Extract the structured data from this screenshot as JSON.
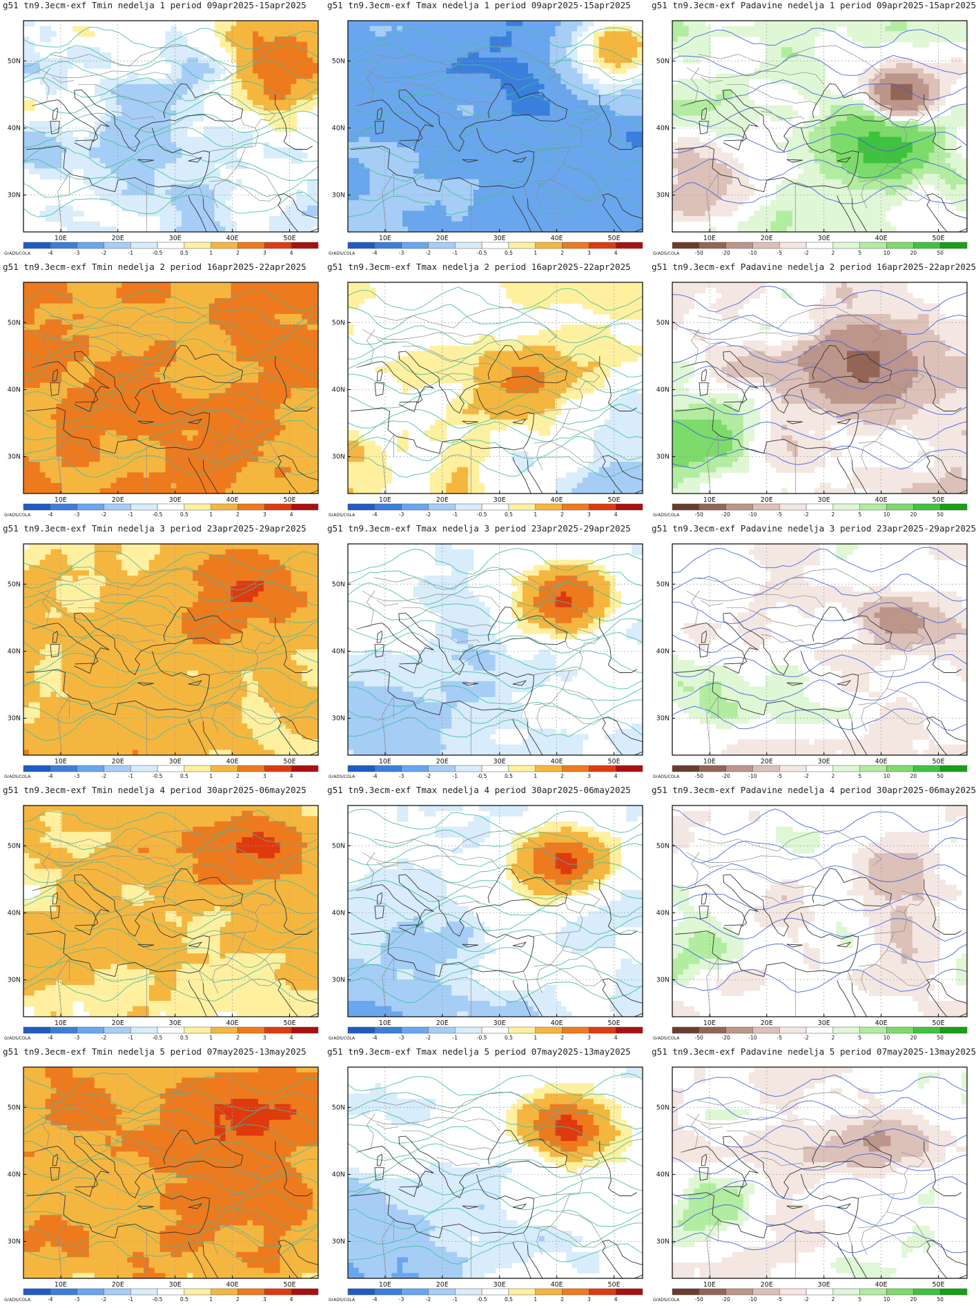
{
  "credit": "GrADS/COLA",
  "lon_ticks": [
    "10E",
    "20E",
    "30E",
    "40E",
    "50E"
  ],
  "lat_ticks": [
    "50N",
    "40N",
    "30N"
  ],
  "temp_scale": {
    "labels": [
      "-4",
      "-3",
      "-2",
      "-1",
      "-0.5",
      "0.5",
      "1",
      "2",
      "3",
      "4"
    ],
    "colors": [
      "#1f5bc4",
      "#3b7fdc",
      "#6aa6ee",
      "#a6cdf6",
      "#d8ecfb",
      "#ffffff",
      "#fff0a0",
      "#f5b640",
      "#ee7a1e",
      "#df3a0f",
      "#aa1010"
    ]
  },
  "precip_scale": {
    "labels": [
      "-50",
      "-20",
      "-10",
      "-5",
      "-2",
      "2",
      "5",
      "10",
      "20",
      "50"
    ],
    "colors": [
      "#6b3c2c",
      "#946555",
      "#bc958b",
      "#dcc1b9",
      "#f4e7e2",
      "#ffffff",
      "#dff7d5",
      "#b2eca0",
      "#7ddb6b",
      "#3fc33f",
      "#16a016"
    ]
  },
  "panels": [
    {
      "title": "g51 tn9.3ecm-exf Tmin nedelja 1 period 09apr2025-15apr2025",
      "variable": "Tmin",
      "week": 1,
      "state": "mixed-cool"
    },
    {
      "title": "g51 tn9.3ecm-exf Tmax nedelja 1 period 09apr2025-15apr2025",
      "variable": "Tmax",
      "week": 1,
      "state": "cold"
    },
    {
      "title": "g51 tn9.3ecm-exf Padavine nedelja 1 period 09apr2025-15apr2025",
      "variable": "Padavine",
      "week": 1,
      "state": "wet"
    },
    {
      "title": "g51 tn9.3ecm-exf Tmin nedelja 2 period 16apr2025-22apr2025",
      "variable": "Tmin",
      "week": 2,
      "state": "hot"
    },
    {
      "title": "g51 tn9.3ecm-exf Tmax nedelja 2 period 16apr2025-22apr2025",
      "variable": "Tmax",
      "week": 2,
      "state": "mixed"
    },
    {
      "title": "g51 tn9.3ecm-exf Padavine nedelja 2 period 16apr2025-22apr2025",
      "variable": "Padavine",
      "week": 2,
      "state": "dry"
    },
    {
      "title": "g51 tn9.3ecm-exf Tmin nedelja 3 period 23apr2025-29apr2025",
      "variable": "Tmin",
      "week": 3,
      "state": "warm"
    },
    {
      "title": "g51 tn9.3ecm-exf Tmax nedelja 3 period 23apr2025-29apr2025",
      "variable": "Tmax",
      "week": 3,
      "state": "cool-east-warm"
    },
    {
      "title": "g51 tn9.3ecm-exf Padavine nedelja 3 period 23apr2025-29apr2025",
      "variable": "Padavine",
      "week": 3,
      "state": "light"
    },
    {
      "title": "g51 tn9.3ecm-exf Tmin nedelja 4 period 30apr2025-06may2025",
      "variable": "Tmin",
      "week": 4,
      "state": "warm"
    },
    {
      "title": "g51 tn9.3ecm-exf Tmax nedelja 4 period 30apr2025-06may2025",
      "variable": "Tmax",
      "week": 4,
      "state": "cool-east-warm"
    },
    {
      "title": "g51 tn9.3ecm-exf Padavine nedelja 4 period 30apr2025-06may2025",
      "variable": "Padavine",
      "week": 4,
      "state": "light"
    },
    {
      "title": "g51 tn9.3ecm-exf Tmin nedelja 5 period 07may2025-13may2025",
      "variable": "Tmin",
      "week": 5,
      "state": "hot"
    },
    {
      "title": "g51 tn9.3ecm-exf Tmax nedelja 5 period 07may2025-13may2025",
      "variable": "Tmax",
      "week": 5,
      "state": "cool-east-warm"
    },
    {
      "title": "g51 tn9.3ecm-exf Padavine nedelja 5 period 07may2025-13may2025",
      "variable": "Padavine",
      "week": 5,
      "state": "light"
    }
  ]
}
